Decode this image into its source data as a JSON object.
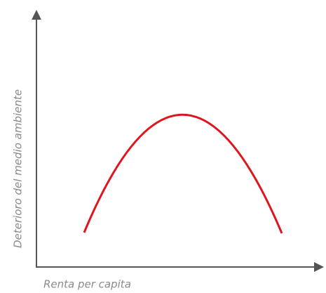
{
  "axes": {
    "y_label": "Deterioro del medio ambiente",
    "x_label": "Renta per capita"
  }
}
